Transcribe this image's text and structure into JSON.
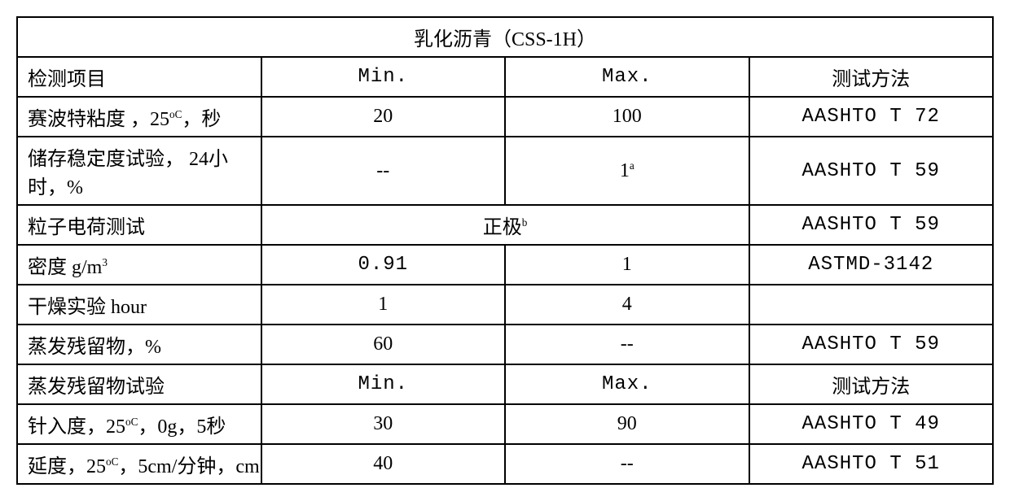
{
  "title": "乳化沥青（CSS-1H）",
  "header": {
    "item": "检测项目",
    "min": "Min.",
    "max": "Max.",
    "method": "测试方法"
  },
  "rows": [
    {
      "item_prefix": "赛波特粘度 ，25",
      "item_sup": "oC",
      "item_suffix": "，秒",
      "min": "20",
      "max": "100",
      "method": "AASHTO T 72"
    },
    {
      "item": "储存稳定度试验， 24小时，%",
      "min": "--",
      "max_val": "1",
      "max_sup": "a",
      "method": "AASHTO T 59"
    },
    {
      "item": "粒子电荷测试",
      "merged_val": "正极",
      "merged_sup": "b",
      "method": "AASHTO T 59"
    },
    {
      "item_prefix": "密度  g/m",
      "item_sup": "3",
      "min": "0.91",
      "max": "1",
      "method": "ASTMD-3142"
    },
    {
      "item": "干燥实验    hour",
      "min": "1",
      "max": "4",
      "method": ""
    },
    {
      "item": "蒸发残留物，%",
      "min": "60",
      "max": "--",
      "method": "AASHTO T 59"
    },
    {
      "item": "蒸发残留物试验",
      "min": "Min.",
      "max": "Max.",
      "method": "测试方法"
    },
    {
      "item_prefix": "针入度，25",
      "item_sup": "oC",
      "item_suffix": "，0g，5秒",
      "min": "30",
      "max": "90",
      "method": "AASHTO T 49"
    },
    {
      "item_prefix": "延度，25",
      "item_sup": "oC",
      "item_suffix": "，5cm/分钟，cm",
      "min": "40",
      "max": "--",
      "method": "AASHTO T 51"
    }
  ]
}
